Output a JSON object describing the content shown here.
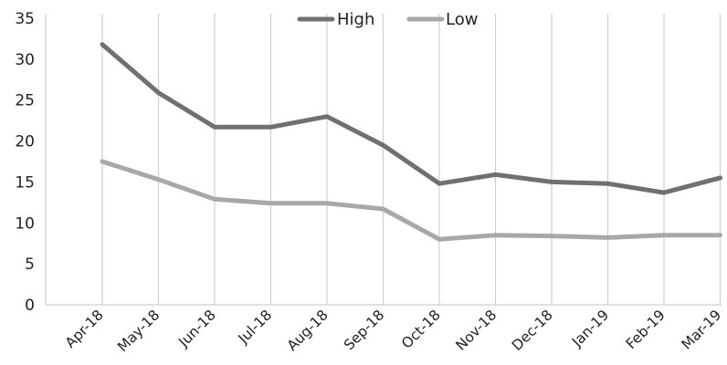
{
  "chart_data": {
    "type": "line",
    "title": "",
    "xlabel": "",
    "ylabel": "",
    "categories": [
      "Apr-18",
      "May-18",
      "Jun-18",
      "Jul-18",
      "Aug-18",
      "Sep-18",
      "Oct-18",
      "Nov-18",
      "Dec-18",
      "Jan-19",
      "Feb-19",
      "Mar-19"
    ],
    "series": [
      {
        "name": "High",
        "color": "#707070",
        "values": [
          31.8,
          25.9,
          21.7,
          21.7,
          23.0,
          19.5,
          14.8,
          15.9,
          15.0,
          14.8,
          13.7,
          15.5
        ]
      },
      {
        "name": "Low",
        "color": "#a8a8a8",
        "values": [
          17.5,
          15.3,
          12.9,
          12.4,
          12.4,
          11.7,
          8.0,
          8.5,
          8.4,
          8.2,
          8.5,
          8.5
        ]
      }
    ],
    "ylim": [
      0,
      35
    ],
    "yticks": [
      "0",
      "5",
      "10",
      "15",
      "20",
      "25",
      "30",
      "35"
    ],
    "grid": "vertical",
    "legend": "top-center"
  }
}
